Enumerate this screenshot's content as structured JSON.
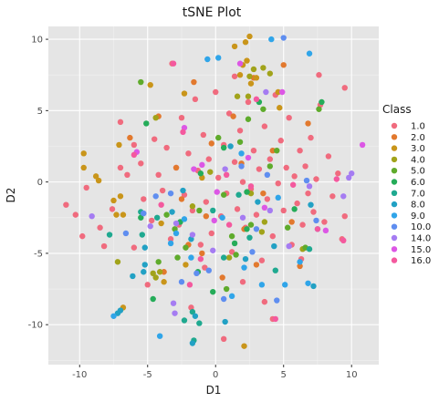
{
  "chart_data": {
    "type": "scatter",
    "title": "tSNE Plot",
    "xlabel": "D1",
    "ylabel": "D2",
    "xlim": [
      -12.3,
      12.0
    ],
    "ylim": [
      -12.8,
      10.9
    ],
    "xticks": [
      -10,
      -5,
      0,
      5,
      10
    ],
    "yticks": [
      -10,
      -5,
      0,
      5,
      10
    ],
    "grid": true,
    "legend": {
      "title": "Class",
      "placement": "right"
    },
    "series": [
      {
        "name": "1.0",
        "color": "#f06b7e",
        "points": [
          [
            -11,
            -1.6
          ],
          [
            -10.3,
            -2.3
          ],
          [
            -9.5,
            -0.4
          ],
          [
            -9.8,
            -3.8
          ],
          [
            -8.5,
            -3.2
          ],
          [
            -7.6,
            -1.9
          ],
          [
            -7.0,
            1.0
          ],
          [
            -7.0,
            4.2
          ],
          [
            -6.5,
            0.5
          ],
          [
            -6.0,
            2.6
          ],
          [
            -5.5,
            1.3
          ],
          [
            -5.3,
            -1.2
          ],
          [
            -4.7,
            -2.7
          ],
          [
            -4.5,
            3.0
          ],
          [
            -4.2,
            0.5
          ],
          [
            -3.9,
            -0.6
          ],
          [
            -3.6,
            2.4
          ],
          [
            -3.3,
            -4.0
          ],
          [
            -2.9,
            1.0
          ],
          [
            -2.7,
            -3.0
          ],
          [
            -2.5,
            4.5
          ],
          [
            -2.3,
            -0.9
          ],
          [
            -2.0,
            2.0
          ],
          [
            -1.7,
            -2.0
          ],
          [
            -1.5,
            5.8
          ],
          [
            -1.3,
            0.8
          ],
          [
            -1.1,
            -4.4
          ],
          [
            -0.9,
            3.3
          ],
          [
            -0.7,
            -1.4
          ],
          [
            -0.5,
            1.6
          ],
          [
            -0.3,
            -3.6
          ],
          [
            0.0,
            6.3
          ],
          [
            0.2,
            0.3
          ],
          [
            0.4,
            -2.4
          ],
          [
            0.6,
            2.6
          ],
          [
            0.8,
            -0.8
          ],
          [
            1.0,
            4.8
          ],
          [
            1.2,
            -4.9
          ],
          [
            1.4,
            1.4
          ],
          [
            1.6,
            -1.9
          ],
          [
            1.8,
            3.6
          ],
          [
            2.0,
            0.0
          ],
          [
            2.2,
            -3.2
          ],
          [
            2.4,
            5.6
          ],
          [
            2.6,
            -0.5
          ],
          [
            2.8,
            2.2
          ],
          [
            3.0,
            -2.3
          ],
          [
            3.2,
            0.9
          ],
          [
            3.4,
            -5.5
          ],
          [
            3.6,
            3.9
          ],
          [
            3.8,
            -1.2
          ],
          [
            4.0,
            1.6
          ],
          [
            4.2,
            -3.8
          ],
          [
            4.4,
            6.1
          ],
          [
            4.6,
            -0.1
          ],
          [
            4.8,
            2.9
          ],
          [
            5.0,
            -2.0
          ],
          [
            5.2,
            1.0
          ],
          [
            5.4,
            4.5
          ],
          [
            5.6,
            -4.4
          ],
          [
            5.8,
            0.4
          ],
          [
            6.0,
            -1.5
          ],
          [
            6.2,
            2.2
          ],
          [
            6.4,
            -3.0
          ],
          [
            6.6,
            1.1
          ],
          [
            6.8,
            -0.8
          ],
          [
            7.0,
            3.1
          ],
          [
            7.2,
            -2.1
          ],
          [
            7.4,
            0.2
          ],
          [
            7.7,
            5.4
          ],
          [
            8.0,
            -2.8
          ],
          [
            8.3,
            1.8
          ],
          [
            8.6,
            -1.0
          ],
          [
            9.0,
            0.6
          ],
          [
            9.5,
            -2.4
          ],
          [
            9.3,
            -4.0
          ],
          [
            4.2,
            -9.6
          ],
          [
            -3.2,
            8.3
          ],
          [
            0.6,
            -11.0
          ],
          [
            2.0,
            -7.0
          ],
          [
            -5.0,
            -7.2
          ],
          [
            6.3,
            -5.4
          ],
          [
            -1.8,
            -8.8
          ],
          [
            3.6,
            -8.4
          ],
          [
            -0.8,
            -6.0
          ],
          [
            1.4,
            7.4
          ],
          [
            7.6,
            7.5
          ],
          [
            -6.0,
            -4.6
          ],
          [
            9.5,
            6.6
          ],
          [
            -8.2,
            -4.5
          ]
        ]
      },
      {
        "name": "2.0",
        "color": "#e2792e",
        "points": [
          [
            -6.3,
            3.1
          ],
          [
            -4.2,
            4.6
          ],
          [
            -2.9,
            1.0
          ],
          [
            -2.5,
            -1.2
          ],
          [
            -1.6,
            7.0
          ],
          [
            -1.0,
            -5.0
          ],
          [
            -0.3,
            2.7
          ],
          [
            0.5,
            -6.7
          ],
          [
            1.3,
            4.6
          ],
          [
            2.1,
            -3.3
          ],
          [
            2.8,
            7.3
          ],
          [
            3.5,
            -0.8
          ],
          [
            4.2,
            2.2
          ],
          [
            5.0,
            8.2
          ],
          [
            5.6,
            -2.8
          ],
          [
            6.2,
            -5.9
          ],
          [
            6.8,
            4.1
          ],
          [
            -3.8,
            -6.3
          ],
          [
            -0.7,
            -2.4
          ],
          [
            1.9,
            1.3
          ],
          [
            3.0,
            -5.8
          ],
          [
            -2.0,
            -4.4
          ]
        ]
      },
      {
        "name": "3.0",
        "color": "#c9951a",
        "points": [
          [
            -9.7,
            2.0
          ],
          [
            -9.7,
            1.0
          ],
          [
            -8.8,
            0.4
          ],
          [
            -8.6,
            0.1
          ],
          [
            -7.5,
            -1.3
          ],
          [
            -7.3,
            -2.3
          ],
          [
            -6.8,
            -8.8
          ],
          [
            2.2,
            9.8
          ],
          [
            2.3,
            8.5
          ],
          [
            2.5,
            10.2
          ],
          [
            2.6,
            6.9
          ],
          [
            2.0,
            8.2
          ],
          [
            1.8,
            7.5
          ],
          [
            3.0,
            7.3
          ],
          [
            1.4,
            9.5
          ],
          [
            -2.3,
            6.2
          ],
          [
            -7.1,
            2.6
          ],
          [
            -7.0,
            -1.0
          ],
          [
            -6.8,
            -2.3
          ],
          [
            -4.8,
            6.8
          ],
          [
            -3.8,
            -7.0
          ],
          [
            -2.2,
            -5.8
          ],
          [
            2.1,
            -11.5
          ],
          [
            4.6,
            6.3
          ],
          [
            4.7,
            5.2
          ],
          [
            -1.0,
            0.3
          ],
          [
            -4.0,
            -2.9
          ]
        ]
      },
      {
        "name": "4.0",
        "color": "#a1a31a",
        "points": [
          [
            3.5,
            8.0
          ],
          [
            2.8,
            7.9
          ],
          [
            2.5,
            7.4
          ],
          [
            2.4,
            6.0
          ],
          [
            1.6,
            6.0
          ],
          [
            -0.4,
            0.7
          ],
          [
            -4.4,
            -6.7
          ],
          [
            -4.1,
            -6.3
          ],
          [
            -4.6,
            -6.4
          ],
          [
            3.6,
            -2.8
          ],
          [
            4.0,
            7.6
          ],
          [
            -7.2,
            -5.6
          ],
          [
            1.0,
            -5.3
          ],
          [
            2.6,
            -0.8
          ],
          [
            -4.4,
            4.5
          ],
          [
            6.4,
            -4.7
          ],
          [
            -1.7,
            -1.7
          ],
          [
            3.4,
            -3.5
          ]
        ]
      },
      {
        "name": "5.0",
        "color": "#5fab2c",
        "points": [
          [
            -5.5,
            7.0
          ],
          [
            -4.2,
            -5.6
          ],
          [
            -3.6,
            -2.3
          ],
          [
            -3.0,
            -3.3
          ],
          [
            -2.2,
            -4.6
          ],
          [
            -1.2,
            -2.0
          ],
          [
            0.2,
            3.1
          ],
          [
            0.6,
            -0.9
          ],
          [
            1.2,
            -3.8
          ],
          [
            1.8,
            2.8
          ],
          [
            2.4,
            4.4
          ],
          [
            2.6,
            -3.0
          ],
          [
            3.5,
            5.1
          ],
          [
            4.0,
            1.1
          ],
          [
            4.5,
            2.2
          ],
          [
            5.3,
            -3.2
          ],
          [
            6.6,
            -4.6
          ],
          [
            7.6,
            5.1
          ],
          [
            0.8,
            -7.5
          ],
          [
            -2.8,
            -5.3
          ],
          [
            1.5,
            -5.1
          ]
        ]
      },
      {
        "name": "6.0",
        "color": "#25ac59",
        "points": [
          [
            -5.1,
            4.1
          ],
          [
            -4.6,
            -8.2
          ],
          [
            -2.6,
            -2.8
          ],
          [
            -1.3,
            -6.3
          ],
          [
            -0.2,
            -7.7
          ],
          [
            0.6,
            2.4
          ],
          [
            1.4,
            -4.3
          ],
          [
            2.3,
            -3.3
          ],
          [
            3.2,
            5.6
          ],
          [
            -5.5,
            -2.5
          ],
          [
            5.8,
            -1.9
          ],
          [
            7.8,
            5.6
          ],
          [
            -1.1,
            0.6
          ],
          [
            2.3,
            -0.7
          ]
        ]
      },
      {
        "name": "7.0",
        "color": "#1fa990",
        "points": [
          [
            -7.8,
            -3.7
          ],
          [
            -5.4,
            -3.7
          ],
          [
            -5.5,
            -2.1
          ],
          [
            -4.3,
            -2.5
          ],
          [
            -2.3,
            -9.7
          ],
          [
            -1.7,
            -9.1
          ],
          [
            -1.6,
            -11.1
          ],
          [
            -1.2,
            -9.9
          ],
          [
            0.6,
            -5.3
          ],
          [
            2.5,
            -3.9
          ],
          [
            4.4,
            -6.2
          ],
          [
            6.9,
            -4.7
          ],
          [
            -0.2,
            -2.0
          ],
          [
            1.7,
            -0.9
          ]
        ]
      },
      {
        "name": "8.0",
        "color": "#22a1c4",
        "points": [
          [
            -7.2,
            -9.2
          ],
          [
            -7.0,
            -9.0
          ],
          [
            -6.1,
            -6.6
          ],
          [
            -5.3,
            -6.3
          ],
          [
            -5.2,
            -5.8
          ],
          [
            -3.2,
            -2.1
          ],
          [
            -2.4,
            -0.6
          ],
          [
            -1.7,
            -11.3
          ],
          [
            -1.5,
            -9.4
          ],
          [
            0.7,
            -9.8
          ],
          [
            2.2,
            -5.4
          ],
          [
            3.1,
            -1.4
          ],
          [
            4.3,
            -4.5
          ],
          [
            7.0,
            -1.6
          ],
          [
            7.2,
            -7.3
          ],
          [
            -5.2,
            -4.6
          ],
          [
            1.1,
            2.5
          ],
          [
            -1.8,
            -4.0
          ]
        ]
      },
      {
        "name": "9.0",
        "color": "#30a5e9",
        "points": [
          [
            -7.5,
            -9.4
          ],
          [
            -4.1,
            -10.8
          ],
          [
            -3.3,
            -4.3
          ],
          [
            -2.3,
            -2.6
          ],
          [
            -1.8,
            -5.3
          ],
          [
            0.5,
            -2.5
          ],
          [
            1.2,
            -8.0
          ],
          [
            2.1,
            -6.0
          ],
          [
            3.4,
            -7.2
          ],
          [
            4.1,
            10.0
          ],
          [
            5.1,
            -7.2
          ],
          [
            6.2,
            -5.6
          ],
          [
            6.8,
            -7.1
          ],
          [
            6.9,
            9.0
          ],
          [
            0.2,
            8.7
          ],
          [
            -0.6,
            8.6
          ],
          [
            7.5,
            -3.3
          ],
          [
            1.9,
            2.0
          ],
          [
            -2.9,
            -3.6
          ],
          [
            4.6,
            -1.1
          ]
        ]
      },
      {
        "name": "10.0",
        "color": "#5f8ef0",
        "points": [
          [
            -5.3,
            -2.2
          ],
          [
            -4.4,
            -1.0
          ],
          [
            -2.5,
            -7.0
          ],
          [
            -1.4,
            -6.4
          ],
          [
            -0.5,
            -6.2
          ],
          [
            0.6,
            -8.2
          ],
          [
            2.7,
            -4.9
          ],
          [
            3.0,
            -3.3
          ],
          [
            3.8,
            0.5
          ],
          [
            4.5,
            -8.3
          ],
          [
            5.0,
            10.1
          ],
          [
            6.7,
            0.1
          ],
          [
            7.4,
            -2.7
          ],
          [
            -3.3,
            -0.8
          ],
          [
            1.9,
            1.1
          ],
          [
            -6.6,
            -3.6
          ]
        ]
      },
      {
        "name": "14.0",
        "color": "#a57cf2",
        "points": [
          [
            -9.1,
            -2.4
          ],
          [
            -4.8,
            -3.1
          ],
          [
            -3.0,
            -9.2
          ],
          [
            -2.9,
            -2.9
          ],
          [
            -1.7,
            -3.7
          ],
          [
            -0.2,
            -4.8
          ],
          [
            0.7,
            0.9
          ],
          [
            2.0,
            -2.5
          ],
          [
            3.7,
            6.3
          ],
          [
            6.9,
            -0.3
          ],
          [
            9.4,
            -1.0
          ],
          [
            9.8,
            0.3
          ],
          [
            10.0,
            0.6
          ],
          [
            -3.1,
            -8.5
          ],
          [
            4.0,
            -2.0
          ],
          [
            5.4,
            -4.5
          ]
        ]
      },
      {
        "name": "15.0",
        "color": "#dc57e5",
        "points": [
          [
            -5.8,
            2.1
          ],
          [
            -1.6,
            0.9
          ],
          [
            -1.0,
            1.2
          ],
          [
            0.1,
            -0.7
          ],
          [
            1.8,
            8.3
          ],
          [
            3.6,
            -1.8
          ],
          [
            4.9,
            6.3
          ],
          [
            8.1,
            -3.4
          ],
          [
            10.8,
            2.6
          ],
          [
            -2.3,
            3.8
          ],
          [
            -0.1,
            -2.7
          ],
          [
            2.4,
            1.7
          ]
        ]
      },
      {
        "name": "16.0",
        "color": "#f4599e",
        "points": [
          [
            -6.0,
            1.9
          ],
          [
            -3.1,
            8.3
          ],
          [
            -2.4,
            3.5
          ],
          [
            -1.1,
            -5.4
          ],
          [
            0.8,
            0.5
          ],
          [
            2.6,
            -0.3
          ],
          [
            3.0,
            5.8
          ],
          [
            4.4,
            -9.6
          ],
          [
            5.7,
            -0.2
          ],
          [
            7.5,
            -3.3
          ],
          [
            8.9,
            0.2
          ],
          [
            9.4,
            -4.1
          ],
          [
            -1.9,
            -7.2
          ],
          [
            1.0,
            -3.0
          ],
          [
            -4.0,
            -1.6
          ]
        ]
      }
    ]
  }
}
